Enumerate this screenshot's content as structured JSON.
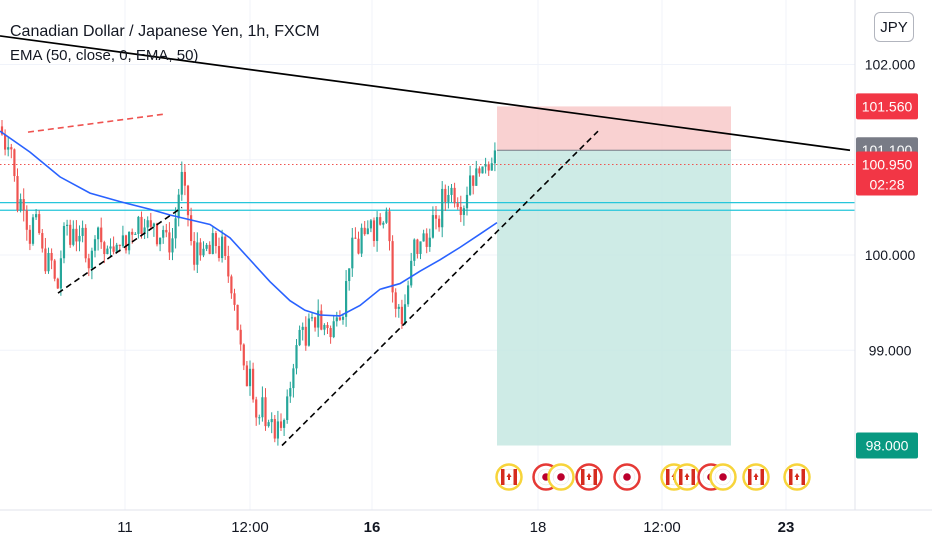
{
  "header": {
    "title": "Canadian Dollar / Japanese Yen, 1h, FXCM",
    "indicator": "EMA (50, close, 0, EMA, 50)"
  },
  "currency_button": "JPY",
  "colors": {
    "up": "#26a69a",
    "down": "#ef5350",
    "ema": "#2962ff",
    "stop_zone": "#f7c5c5",
    "target_zone": "#c6e7e2",
    "level_line": "#26c6da",
    "trend_line": "#000000"
  },
  "chart_data": {
    "type": "candlestick",
    "symbol": "CADJPY",
    "interval": "1h",
    "price_axis": {
      "ticks": [
        102,
        101,
        100,
        99
      ],
      "tick_labels": [
        "102.000",
        "101.000",
        "100.000",
        "99.000"
      ]
    },
    "time_axis": {
      "ticks": [
        {
          "label": "11",
          "bold": false
        },
        {
          "label": "12:00",
          "bold": false
        },
        {
          "label": "16",
          "bold": true
        },
        {
          "label": "18",
          "bold": false
        },
        {
          "label": "12:00",
          "bold": false
        },
        {
          "label": "23",
          "bold": true
        }
      ]
    },
    "price_labels": {
      "stop": {
        "text": "101.560",
        "value": 101.56
      },
      "entry": {
        "text": "101.100",
        "value": 101.1
      },
      "last": {
        "text": "100.950",
        "value": 100.95
      },
      "countdown": "02:28",
      "target": {
        "text": "98.000",
        "value": 98.0
      }
    },
    "horizontal_levels": [
      100.55,
      100.47
    ],
    "path_points": [
      [
        0,
        101.35
      ],
      [
        6,
        101.1
      ],
      [
        10,
        101.25
      ],
      [
        14,
        100.85
      ],
      [
        18,
        100.45
      ],
      [
        22,
        100.65
      ],
      [
        26,
        100.35
      ],
      [
        30,
        100.15
      ],
      [
        34,
        100.45
      ],
      [
        38,
        100.3
      ],
      [
        42,
        100.05
      ],
      [
        46,
        99.85
      ],
      [
        50,
        100.05
      ],
      [
        54,
        99.75
      ],
      [
        58,
        99.65
      ],
      [
        62,
        100.1
      ],
      [
        66,
        100.4
      ],
      [
        70,
        100.1
      ],
      [
        74,
        100.35
      ],
      [
        78,
        100.05
      ],
      [
        82,
        100.3
      ],
      [
        86,
        100.0
      ],
      [
        90,
        99.85
      ],
      [
        94,
        100.2
      ],
      [
        98,
        100.3
      ],
      [
        102,
        100.1
      ],
      [
        106,
        99.95
      ],
      [
        110,
        100.15
      ],
      [
        114,
        100.0
      ],
      [
        118,
        100.1
      ],
      [
        122,
        100.2
      ],
      [
        126,
        100.05
      ],
      [
        130,
        100.3
      ],
      [
        134,
        100.2
      ],
      [
        138,
        100.4
      ],
      [
        142,
        100.25
      ],
      [
        146,
        100.4
      ],
      [
        150,
        100.25
      ],
      [
        154,
        100.35
      ],
      [
        158,
        100.1
      ],
      [
        162,
        100.3
      ],
      [
        166,
        100.2
      ],
      [
        170,
        100.05
      ],
      [
        174,
        100.25
      ],
      [
        178,
        100.6
      ],
      [
        182,
        100.85
      ],
      [
        186,
        100.6
      ],
      [
        190,
        100.25
      ],
      [
        194,
        99.85
      ],
      [
        198,
        100.2
      ],
      [
        202,
        99.95
      ],
      [
        206,
        100.1
      ],
      [
        210,
        100.0
      ],
      [
        214,
        100.25
      ],
      [
        218,
        99.95
      ],
      [
        222,
        100.15
      ],
      [
        226,
        99.9
      ],
      [
        230,
        99.7
      ],
      [
        234,
        99.55
      ],
      [
        238,
        99.2
      ],
      [
        242,
        98.95
      ],
      [
        246,
        98.6
      ],
      [
        250,
        98.85
      ],
      [
        254,
        98.45
      ],
      [
        258,
        98.2
      ],
      [
        262,
        98.5
      ],
      [
        266,
        98.1
      ],
      [
        270,
        98.4
      ],
      [
        274,
        98.05
      ],
      [
        278,
        98.3
      ],
      [
        282,
        98.1
      ],
      [
        286,
        98.4
      ],
      [
        290,
        98.6
      ],
      [
        294,
        98.9
      ],
      [
        298,
        99.1
      ],
      [
        302,
        99.35
      ],
      [
        306,
        99.0
      ],
      [
        310,
        99.4
      ],
      [
        314,
        99.2
      ],
      [
        318,
        99.45
      ],
      [
        322,
        99.15
      ],
      [
        326,
        99.35
      ],
      [
        330,
        99.1
      ],
      [
        334,
        99.3
      ],
      [
        338,
        99.45
      ],
      [
        342,
        99.3
      ],
      [
        346,
        99.7
      ],
      [
        350,
        99.95
      ],
      [
        354,
        100.25
      ],
      [
        358,
        100.0
      ],
      [
        362,
        100.3
      ],
      [
        366,
        100.1
      ],
      [
        370,
        100.45
      ],
      [
        374,
        100.2
      ],
      [
        378,
        100.45
      ],
      [
        382,
        100.3
      ],
      [
        386,
        100.55
      ],
      [
        390,
        100.1
      ],
      [
        394,
        99.35
      ],
      [
        398,
        99.5
      ],
      [
        402,
        99.3
      ],
      [
        406,
        99.55
      ],
      [
        410,
        99.8
      ],
      [
        414,
        100.15
      ],
      [
        418,
        99.95
      ],
      [
        422,
        100.3
      ],
      [
        426,
        100.05
      ],
      [
        430,
        100.25
      ],
      [
        434,
        100.45
      ],
      [
        438,
        100.2
      ],
      [
        442,
        100.65
      ],
      [
        446,
        100.55
      ],
      [
        450,
        100.75
      ],
      [
        454,
        100.6
      ],
      [
        458,
        100.55
      ],
      [
        462,
        100.45
      ],
      [
        466,
        100.6
      ],
      [
        470,
        100.85
      ],
      [
        474,
        100.75
      ],
      [
        478,
        100.95
      ],
      [
        482,
        100.85
      ],
      [
        486,
        101.0
      ],
      [
        490,
        100.9
      ],
      [
        494,
        101.15
      ],
      [
        497,
        100.95
      ]
    ],
    "ema_points": [
      [
        0,
        101.3
      ],
      [
        30,
        101.08
      ],
      [
        60,
        100.82
      ],
      [
        90,
        100.65
      ],
      [
        120,
        100.56
      ],
      [
        150,
        100.48
      ],
      [
        170,
        100.42
      ],
      [
        190,
        100.37
      ],
      [
        210,
        100.32
      ],
      [
        230,
        100.18
      ],
      [
        250,
        99.95
      ],
      [
        270,
        99.72
      ],
      [
        290,
        99.52
      ],
      [
        305,
        99.42
      ],
      [
        320,
        99.37
      ],
      [
        340,
        99.36
      ],
      [
        360,
        99.47
      ],
      [
        380,
        99.64
      ],
      [
        400,
        99.7
      ],
      [
        420,
        99.83
      ],
      [
        440,
        99.95
      ],
      [
        460,
        100.08
      ],
      [
        480,
        100.22
      ],
      [
        497,
        100.34
      ]
    ],
    "trend_lines": [
      {
        "style": "solid",
        "color": "#000000",
        "from": [
          0,
          102.3
        ],
        "to": [
          850,
          101.1
        ]
      },
      {
        "style": "dashed",
        "color": "#ef5350",
        "from": [
          28,
          101.29
        ],
        "to": [
          165,
          101.48
        ]
      },
      {
        "style": "dashed",
        "color": "#000000",
        "from": [
          58,
          99.6
        ],
        "to": [
          182,
          100.5
        ]
      },
      {
        "style": "dashed",
        "color": "#000000",
        "from": [
          282,
          98.0
        ],
        "to": [
          598,
          101.3
        ]
      }
    ],
    "position_tool": {
      "x_start": 497,
      "x_end": 731,
      "entry": 101.1,
      "stop": 101.56,
      "target": 98.0
    },
    "event_markers": [
      {
        "x": 509,
        "flag": "CA",
        "ring": "yellow"
      },
      {
        "x": 546,
        "flag": "JP",
        "ring": "red"
      },
      {
        "x": 561,
        "flag": "JP",
        "ring": "yellow"
      },
      {
        "x": 589,
        "flag": "CA",
        "ring": "red"
      },
      {
        "x": 627,
        "flag": "JP",
        "ring": "red"
      },
      {
        "x": 674,
        "flag": "CA",
        "ring": "yellow"
      },
      {
        "x": 687,
        "flag": "CA",
        "ring": "yellow"
      },
      {
        "x": 711,
        "flag": "JP",
        "ring": "red"
      },
      {
        "x": 723,
        "flag": "JP",
        "ring": "yellow"
      },
      {
        "x": 756,
        "flag": "CA",
        "ring": "yellow"
      },
      {
        "x": 797,
        "flag": "CA",
        "ring": "yellow"
      }
    ]
  }
}
